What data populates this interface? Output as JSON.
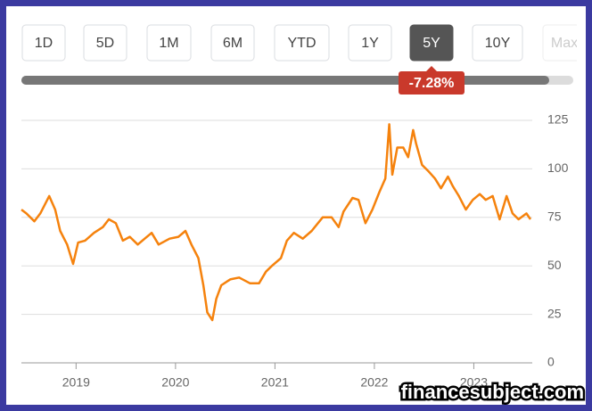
{
  "range_buttons": [
    "1D",
    "5D",
    "1M",
    "6M",
    "YTD",
    "1Y",
    "5Y",
    "10Y",
    "Max"
  ],
  "selected_range": "5Y",
  "change_badge": "-7.28%",
  "watermark": "financesubject.com",
  "chart_data": {
    "type": "line",
    "x": [
      2018.45,
      2018.5,
      2018.58,
      2018.64,
      2018.73,
      2018.79,
      2018.84,
      2018.91,
      2018.97,
      2019.02,
      2019.09,
      2019.18,
      2019.27,
      2019.33,
      2019.4,
      2019.47,
      2019.54,
      2019.62,
      2019.69,
      2019.76,
      2019.83,
      2019.94,
      2020.03,
      2020.1,
      2020.16,
      2020.23,
      2020.28,
      2020.32,
      2020.37,
      2020.41,
      2020.46,
      2020.55,
      2020.64,
      2020.75,
      2020.84,
      2020.91,
      2020.97,
      2021.06,
      2021.12,
      2021.19,
      2021.28,
      2021.37,
      2021.48,
      2021.57,
      2021.64,
      2021.69,
      2021.78,
      2021.84,
      2021.91,
      2021.98,
      2022.05,
      2022.11,
      2022.15,
      2022.18,
      2022.23,
      2022.29,
      2022.34,
      2022.39,
      2022.42,
      2022.48,
      2022.54,
      2022.61,
      2022.67,
      2022.74,
      2022.79,
      2022.85,
      2022.92,
      2022.99,
      2023.06,
      2023.12,
      2023.19,
      2023.26,
      2023.33,
      2023.39,
      2023.45,
      2023.53,
      2023.57
    ],
    "series": [
      {
        "color": "#f5820d",
        "values": [
          79,
          77,
          73,
          77,
          86,
          79,
          68,
          61,
          51,
          62,
          63,
          67,
          70,
          74,
          72,
          63,
          65,
          61,
          64,
          67,
          61,
          64,
          65,
          68,
          61,
          54,
          40,
          26,
          22,
          33,
          40,
          43,
          44,
          41,
          41,
          47,
          50,
          54,
          63,
          67,
          64,
          68,
          75,
          75,
          70,
          78,
          85,
          84,
          72,
          79,
          88,
          95,
          123,
          97,
          111,
          111,
          106,
          120,
          113,
          102,
          99,
          95,
          90,
          96,
          91,
          86,
          79,
          84,
          87,
          84,
          86,
          74,
          86,
          77,
          74,
          77,
          74
        ]
      }
    ],
    "xlim": [
      2018.45,
      2023.57
    ],
    "xticks": [
      2019,
      2020,
      2021,
      2022,
      2023
    ],
    "ylim": [
      0,
      125
    ],
    "yticks": [
      0,
      25,
      50,
      75,
      100,
      125
    ],
    "grid": true
  }
}
